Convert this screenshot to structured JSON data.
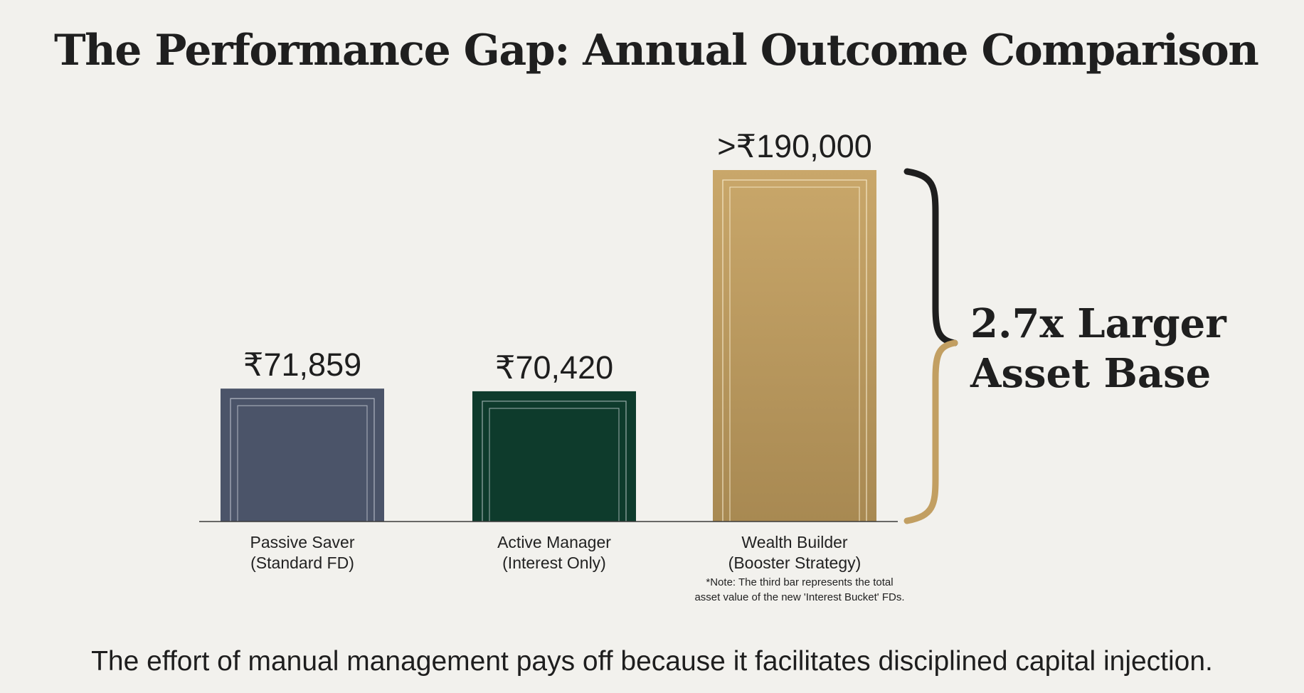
{
  "title": "The Performance Gap: Annual Outcome Comparison",
  "chart_data": {
    "type": "bar",
    "title": "The Performance Gap: Annual Outcome Comparison",
    "xlabel": "",
    "ylabel": "",
    "ylim": [
      0,
      190000
    ],
    "categories": [
      {
        "line1": "Passive Saver",
        "line2": "(Standard FD)"
      },
      {
        "line1": "Active Manager",
        "line2": "(Interest Only)"
      },
      {
        "line1": "Wealth Builder",
        "line2": "(Booster Strategy)"
      }
    ],
    "values": [
      71859,
      70420,
      190000
    ],
    "value_labels": [
      "₹71,859",
      "₹70,420",
      ">₹190,000"
    ],
    "colors": [
      "#4b5469",
      "#0e3b2c",
      "#c29f62"
    ],
    "note": {
      "line1": "*Note: The third bar represents the total",
      "line2": "asset value of the new 'Interest Bucket' FDs."
    },
    "annotation": {
      "line1": "2.7x Larger",
      "line2": "Asset Base",
      "multiplier": "2.7x"
    }
  },
  "footer": "The effort of manual management pays off because it facilitates disciplined capital injection.",
  "colors": {
    "background": "#f2f1ed",
    "text": "#1e1e1e",
    "brace_upper": "#1e1e1e",
    "brace_lower": "#c29f62"
  }
}
